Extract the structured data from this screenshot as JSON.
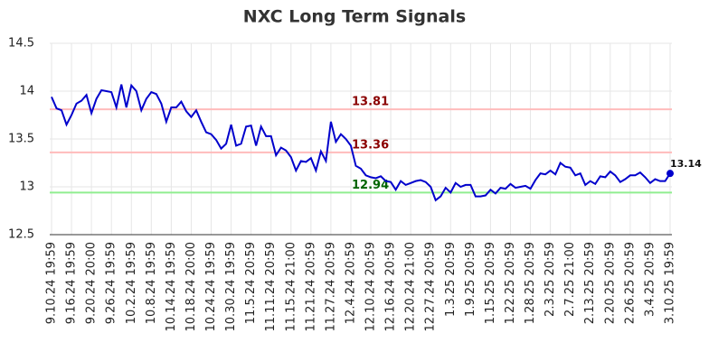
{
  "chart_data": {
    "type": "line",
    "title": "NXC Long Term Signals",
    "categories": [
      "9.10.24 19:59",
      null,
      null,
      null,
      "9.16.24 19:59",
      null,
      null,
      null,
      "9.20.24 20:00",
      null,
      null,
      null,
      "9.26.24 19:59",
      null,
      null,
      null,
      "10.2.24 19:59",
      null,
      null,
      null,
      "10.8.24 19:59",
      null,
      null,
      null,
      "10.14.24 19:59",
      null,
      null,
      null,
      "10.18.24 20:00",
      null,
      null,
      null,
      "10.24.24 19:59",
      null,
      null,
      null,
      "10.30.24 19:59",
      null,
      null,
      null,
      "11.5.24 20:59",
      null,
      null,
      null,
      "11.11.24 20:59",
      null,
      null,
      null,
      "11.15.24 21:00",
      null,
      null,
      null,
      "11.21.24 20:59",
      null,
      null,
      null,
      "11.27.24 20:59",
      null,
      null,
      null,
      "12.4.24 20:59",
      null,
      null,
      null,
      "12.10.24 20:59",
      null,
      null,
      null,
      "12.16.24 20:59",
      null,
      null,
      null,
      "12.20.24 21:00",
      null,
      null,
      null,
      "12.27.24 20:59",
      null,
      null,
      null,
      "1.3.25 20:59",
      null,
      null,
      null,
      "1.9.25 20:59",
      null,
      null,
      null,
      "1.15.25 20:59",
      null,
      null,
      null,
      "1.22.25 20:59",
      null,
      null,
      null,
      "1.28.25 20:59",
      null,
      null,
      null,
      "2.3.25 20:59",
      null,
      null,
      null,
      "2.7.25 21:00",
      null,
      null,
      null,
      "2.13.25 20:59",
      null,
      null,
      null,
      "2.20.25 20:59",
      null,
      null,
      null,
      "2.26.25 20:59",
      null,
      null,
      null,
      "3.4.25 20:59",
      null,
      null,
      null,
      "3.10.25 19:59"
    ],
    "series": [
      {
        "name": "NXC",
        "color": "#0000cc",
        "values": [
          13.94,
          13.82,
          13.8,
          13.65,
          13.75,
          13.87,
          13.9,
          13.96,
          13.77,
          13.92,
          14.01,
          14.0,
          13.99,
          13.83,
          14.07,
          13.83,
          14.06,
          14.0,
          13.8,
          13.92,
          13.99,
          13.97,
          13.87,
          13.68,
          13.83,
          13.83,
          13.89,
          13.79,
          13.73,
          13.8,
          13.68,
          13.57,
          13.55,
          13.49,
          13.4,
          13.45,
          13.65,
          13.43,
          13.45,
          13.63,
          13.64,
          13.43,
          13.63,
          13.53,
          13.53,
          13.33,
          13.41,
          13.38,
          13.31,
          13.17,
          13.27,
          13.26,
          13.3,
          13.17,
          13.37,
          13.27,
          13.68,
          13.47,
          13.55,
          13.5,
          13.43,
          13.22,
          13.19,
          13.12,
          13.1,
          13.09,
          13.11,
          13.06,
          13.05,
          12.97,
          13.06,
          13.02,
          13.04,
          13.06,
          13.07,
          13.05,
          13.0,
          12.86,
          12.9,
          12.99,
          12.94,
          13.04,
          13.0,
          13.02,
          13.02,
          12.9,
          12.9,
          12.91,
          12.97,
          12.93,
          12.99,
          12.98,
          13.03,
          12.99,
          13.0,
          13.01,
          12.98,
          13.07,
          13.14,
          13.13,
          13.17,
          13.13,
          13.25,
          13.21,
          13.2,
          13.12,
          13.14,
          13.02,
          13.06,
          13.03,
          13.11,
          13.1,
          13.16,
          13.12,
          13.05,
          13.08,
          13.12,
          13.12,
          13.15,
          13.1,
          13.04,
          13.08,
          13.06,
          13.06,
          13.14
        ]
      }
    ],
    "reference_lines": [
      {
        "value": 13.81,
        "color": "#ffbbbb",
        "label_color": "#8b0000"
      },
      {
        "value": 13.36,
        "color": "#ffbbbb",
        "label_color": "#8b0000"
      },
      {
        "value": 12.94,
        "color": "#90ee90",
        "label_color": "#006400"
      }
    ],
    "ylim": [
      12.5,
      14.5
    ],
    "yticks": [
      12.5,
      13,
      13.5,
      14,
      14.5
    ],
    "grid": true
  }
}
